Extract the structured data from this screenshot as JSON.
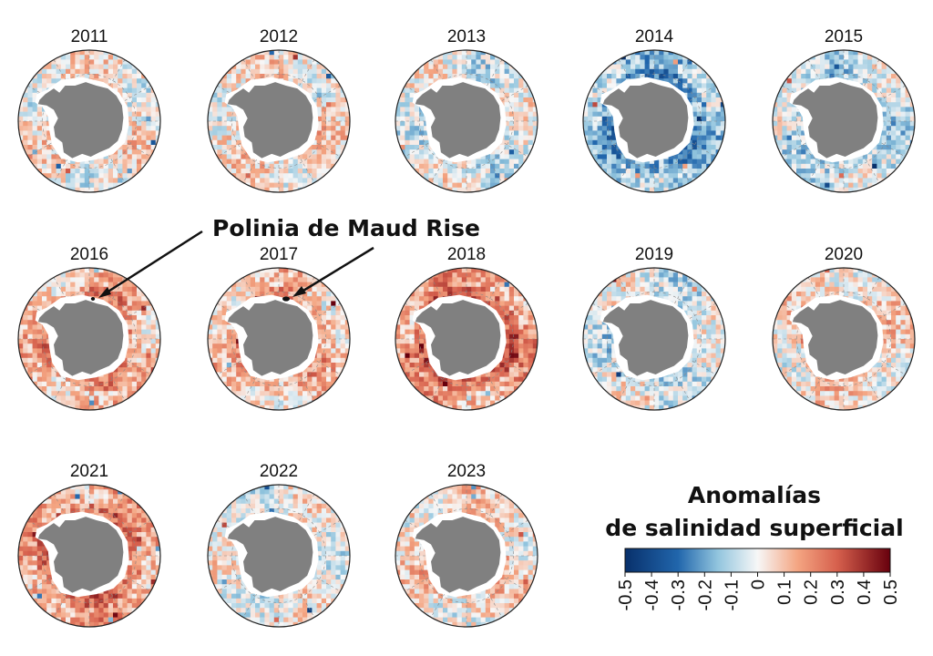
{
  "chart_data": {
    "type": "heatmap",
    "description_kind": "small multiples of polar maps (South polar stereographic) of annual sea surface salinity anomalies around Antarctica",
    "panels": [
      {
        "year": "2011",
        "pattern": "mixed, slightly positive near coast",
        "bias": 0.02
      },
      {
        "year": "2012",
        "pattern": "mixed, positive near coast",
        "bias": 0.03
      },
      {
        "year": "2013",
        "pattern": "mixed, negative in Ross sector",
        "bias": -0.02
      },
      {
        "year": "2014",
        "pattern": "predominantly negative",
        "bias": -0.12
      },
      {
        "year": "2015",
        "pattern": "mostly negative, weak",
        "bias": -0.05
      },
      {
        "year": "2016",
        "pattern": "positive, Maud Rise polynya",
        "bias": 0.1,
        "polynya": true
      },
      {
        "year": "2017",
        "pattern": "positive, Maud Rise polynya",
        "bias": 0.08,
        "polynya": true
      },
      {
        "year": "2018",
        "pattern": "strongly positive",
        "bias": 0.16
      },
      {
        "year": "2019",
        "pattern": "mixed, slightly negative",
        "bias": -0.03
      },
      {
        "year": "2020",
        "pattern": "mixed, slightly positive",
        "bias": 0.04
      },
      {
        "year": "2021",
        "pattern": "positive, strong in Atlantic sector",
        "bias": 0.14
      },
      {
        "year": "2022",
        "pattern": "mixed",
        "bias": 0.0
      },
      {
        "year": "2023",
        "pattern": "mixed, slightly positive",
        "bias": 0.04
      }
    ],
    "annotation": "Polinia de Maud Rise",
    "colorbar": {
      "title_line1": "Anomalías",
      "title_line2": "de salinidad superficial",
      "range": [
        -0.5,
        0.5
      ],
      "ticks": [
        "-0.5",
        "-0.4",
        "-0.3",
        "-0.2",
        "-0.1",
        "0",
        "0.1",
        "0.2",
        "0.3",
        "0.4",
        "0.5"
      ],
      "colormap": "RdBu_r",
      "colors": {
        "neg_max": "#08306b",
        "neg_mid": "#4a8cc4",
        "neutral": "#f7f7f7",
        "pos_mid": "#f08a6a",
        "pos_max": "#67000d",
        "land": "#808080",
        "ice": "#ffffff"
      }
    }
  }
}
